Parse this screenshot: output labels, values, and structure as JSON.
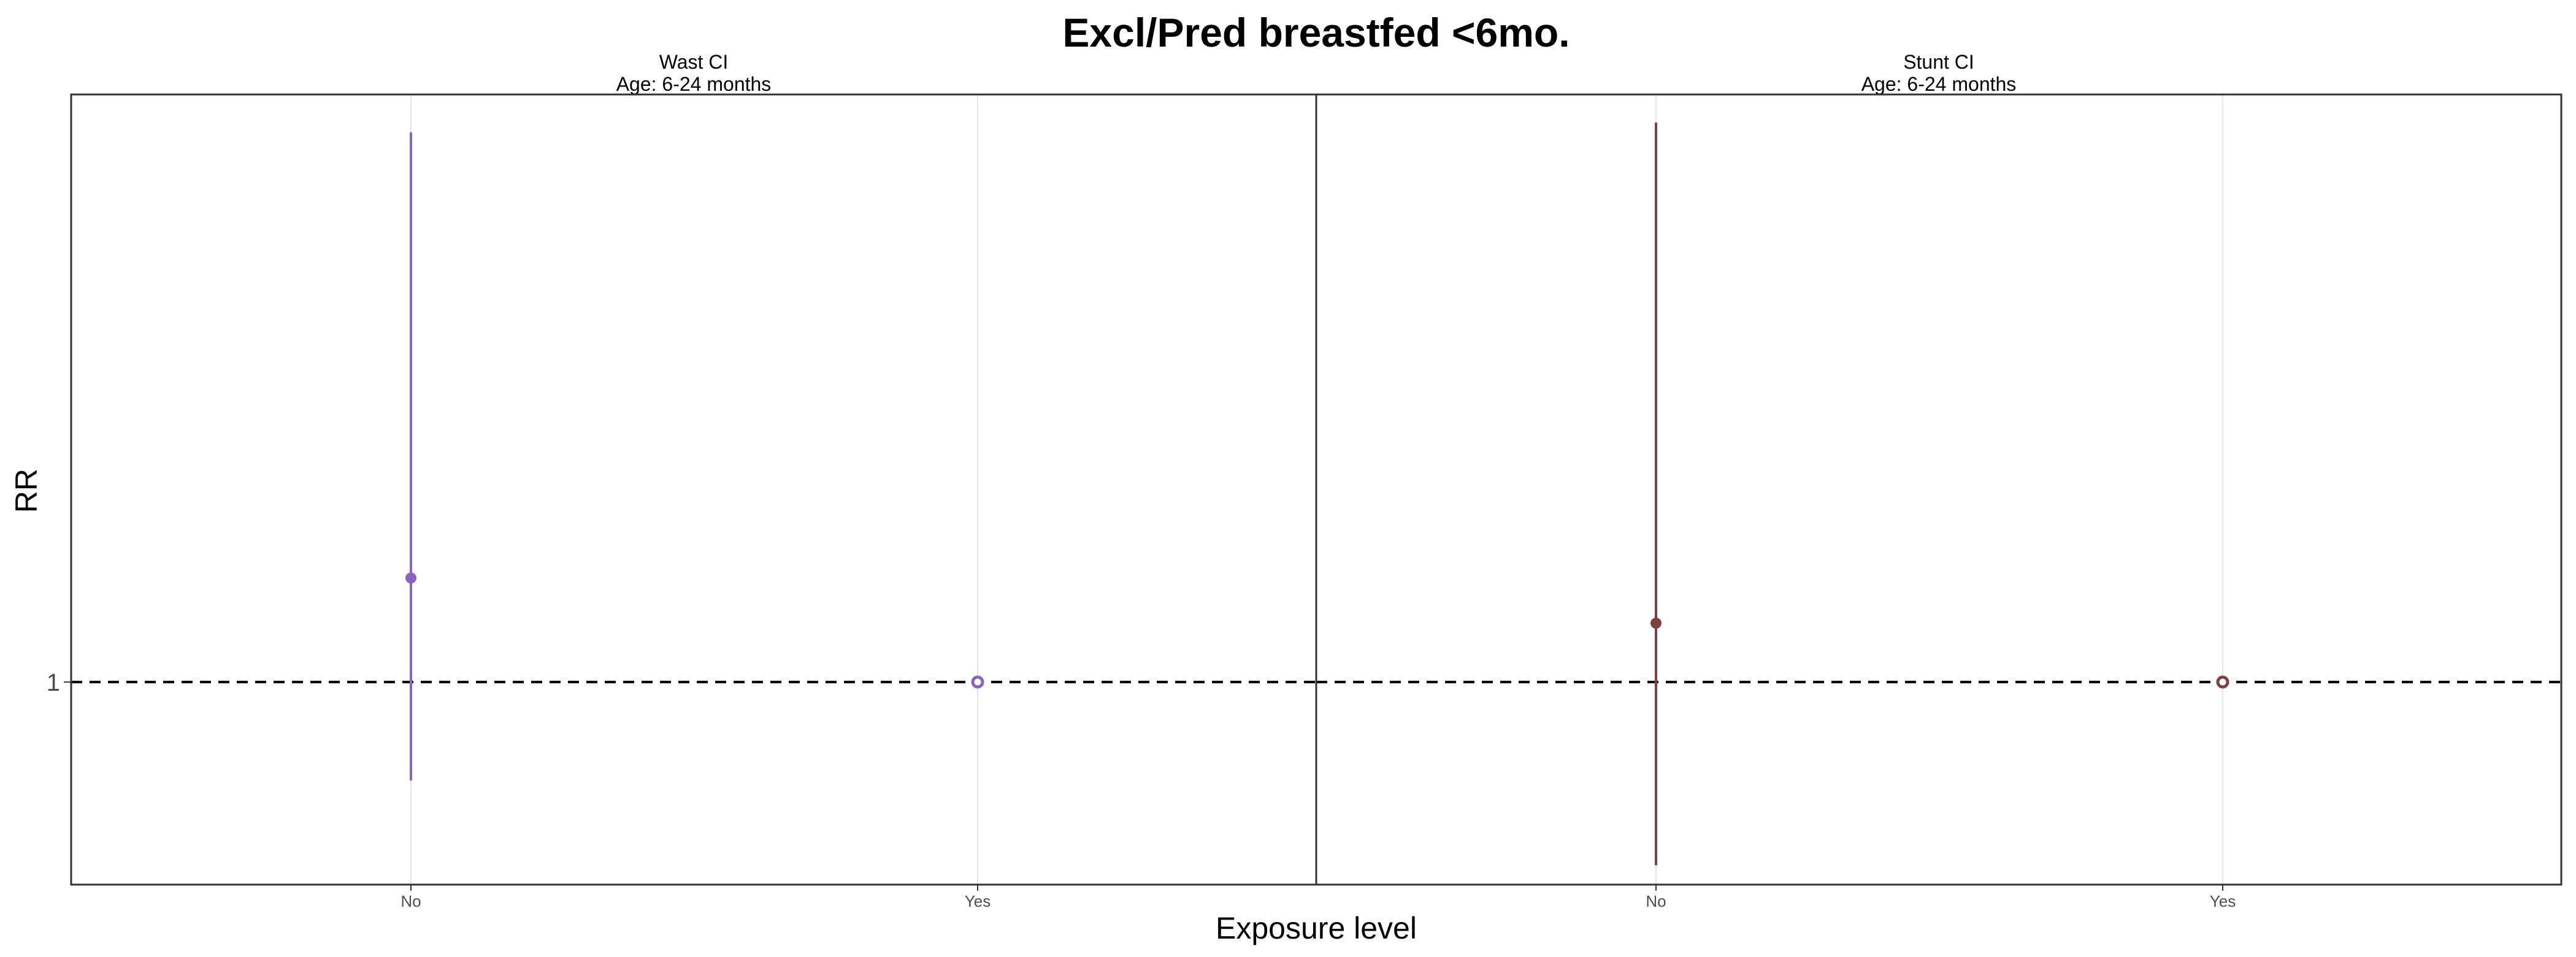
{
  "chart_data": {
    "type": "scatter",
    "title": "Excl/Pred breastfed <6mo.",
    "xlabel": "Exposure level",
    "ylabel": "RR",
    "y_scale": "log",
    "y_ticks": [
      "1"
    ],
    "reference_line": {
      "y": 1,
      "style": "dashed"
    },
    "grid": true,
    "legend": "none",
    "panels": [
      {
        "strip_line1": "Wast CI",
        "strip_line2": "Age: 6-24 months",
        "color": "#8B62BC",
        "categories": [
          "No",
          "Yes"
        ],
        "points": [
          {
            "x": "No",
            "y": 1.3,
            "lower": 0.78,
            "upper": 4.0,
            "reference": false
          },
          {
            "x": "Yes",
            "y": 1.0,
            "reference": true
          }
        ]
      },
      {
        "strip_line1": "Stunt CI",
        "strip_line2": "Age: 6-24 months",
        "color": "#7F4040",
        "categories": [
          "No",
          "Yes"
        ],
        "points": [
          {
            "x": "No",
            "y": 1.16,
            "lower": 0.63,
            "upper": 4.1,
            "reference": false
          },
          {
            "x": "Yes",
            "y": 1.0,
            "reference": true
          }
        ]
      }
    ]
  }
}
